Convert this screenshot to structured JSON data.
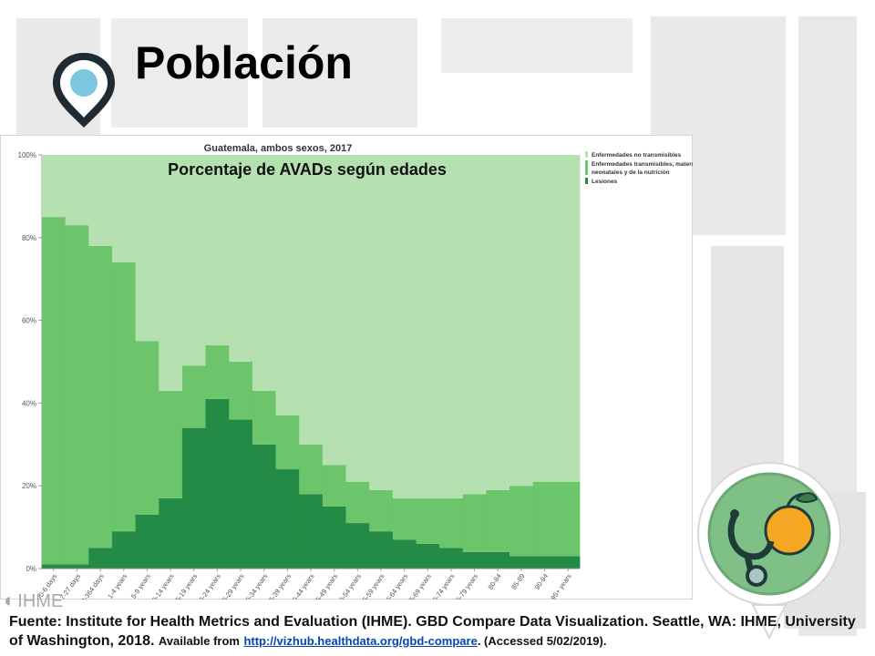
{
  "slide": {
    "title": "Población",
    "source_text_1": "Fuente: Institute for Health Metrics and Evaluation (IHME). GBD Compare Data Visualization. Seattle, WA: IHME, University of Washington, 2018.",
    "source_text_2": "Available from",
    "source_link": "http://vizhub.healthdata.org/gbd-compare",
    "source_text_3": ". (Accessed 5/02/2019).",
    "watermark": "IHME",
    "icons": [
      "map-pin-icon",
      "stethoscope-fruit-icon",
      "ihme-logo-icon"
    ]
  },
  "colors": {
    "ncd": "#b5e1b0",
    "communicable": "#6cc46b",
    "injuries": "#238b45",
    "pin_outer": "#1f2a33",
    "pin_inner": "#7bc8de",
    "link": "#0645ad"
  },
  "chart_data": {
    "type": "bar",
    "stacked": true,
    "title": "Guatemala, ambos sexos, 2017",
    "subtitle": "Porcentaje de AVADs según edades",
    "categories": [
      "0-6 days",
      "7-27 days",
      "28-364 days",
      "1-4 years",
      "5-9 years",
      "10-14 years",
      "15-19 years",
      "20-24 years",
      "25-29 years",
      "30-34 years",
      "35-39 years",
      "40-44 years",
      "45-49 years",
      "50-54 years",
      "55-59 years",
      "60-64 years",
      "65-69 years",
      "70-74 years",
      "75-79 years",
      "80-84",
      "85-89",
      "90-94",
      "95+ years"
    ],
    "ylim": [
      0,
      100
    ],
    "yticks": [
      "0%",
      "20%",
      "40%",
      "60%",
      "80%",
      "100%"
    ],
    "legend_position": "right",
    "series": [
      {
        "name": "Lesiones",
        "values": [
          1,
          1,
          5,
          9,
          13,
          17,
          34,
          41,
          36,
          30,
          24,
          18,
          15,
          11,
          9,
          7,
          6,
          5,
          4,
          4,
          3,
          3,
          3
        ]
      },
      {
        "name": "Enfermedades transmisibles, materna, neonatales y de la nutrición",
        "values": [
          84,
          82,
          73,
          65,
          42,
          26,
          15,
          13,
          14,
          13,
          13,
          12,
          10,
          10,
          10,
          10,
          11,
          12,
          14,
          15,
          17,
          18,
          18
        ]
      },
      {
        "name": "Enfermedades no transmisibles",
        "values": [
          15,
          17,
          22,
          26,
          45,
          57,
          51,
          46,
          50,
          57,
          63,
          70,
          75,
          79,
          81,
          83,
          83,
          83,
          82,
          81,
          80,
          79,
          79
        ]
      }
    ]
  }
}
